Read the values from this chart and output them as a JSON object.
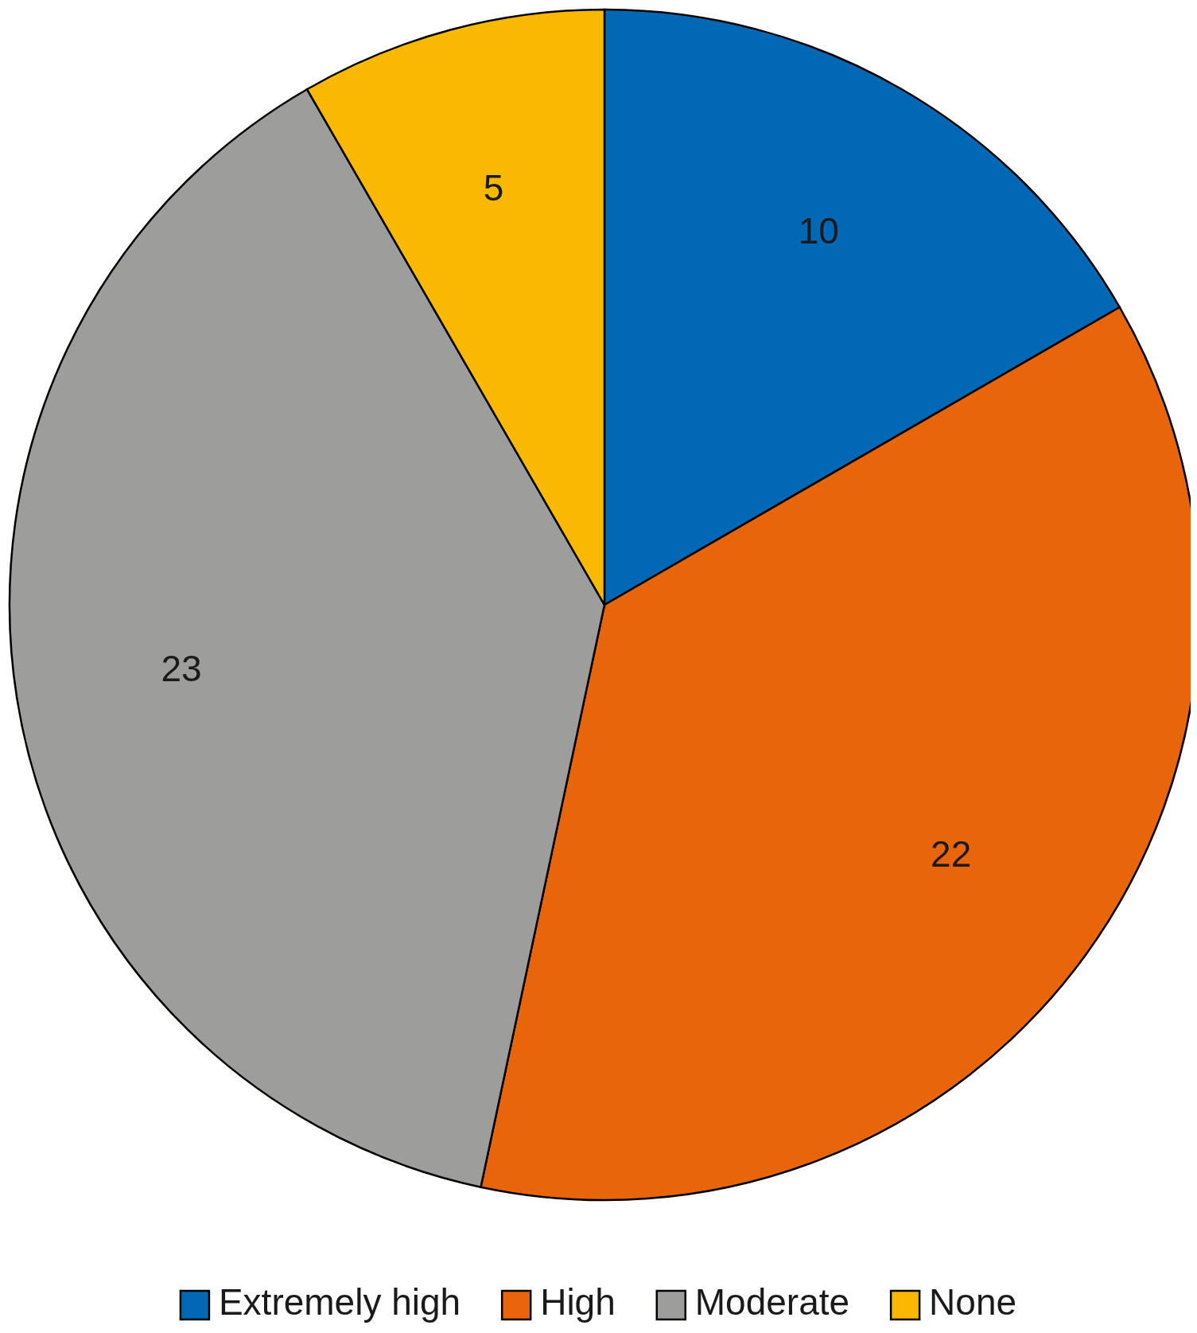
{
  "chart_data": {
    "type": "pie",
    "categories": [
      "Extremely high",
      "High",
      "Moderate",
      "None"
    ],
    "values": [
      10,
      22,
      23,
      5
    ],
    "colors": [
      "#0068b4",
      "#e8650a",
      "#9d9d9b",
      "#f9b900"
    ],
    "data_labels": true,
    "legend": "bottom"
  }
}
